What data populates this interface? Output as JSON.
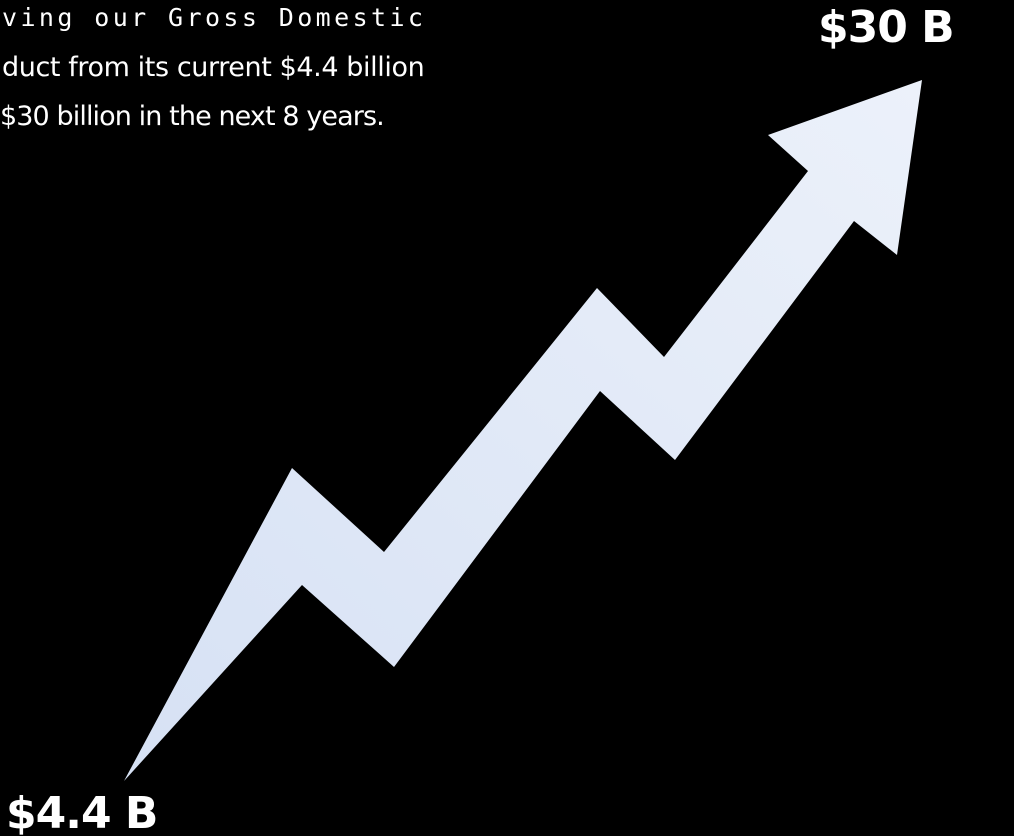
{
  "intro": {
    "line1": "ving our Gross Domestic",
    "line2": "duct from its current $4.4 billion",
    "line3": "$30 billion in the next 8 years."
  },
  "labels": {
    "top": "$30 B",
    "bottom": "$4.4 B"
  },
  "colors": {
    "background": "#000000",
    "text": "#ffffff",
    "arrow_fill_start": "#dbe5f5",
    "arrow_fill_end": "#e9eef9"
  },
  "graphic": {
    "icon": "rising-zigzag-arrow-icon"
  }
}
